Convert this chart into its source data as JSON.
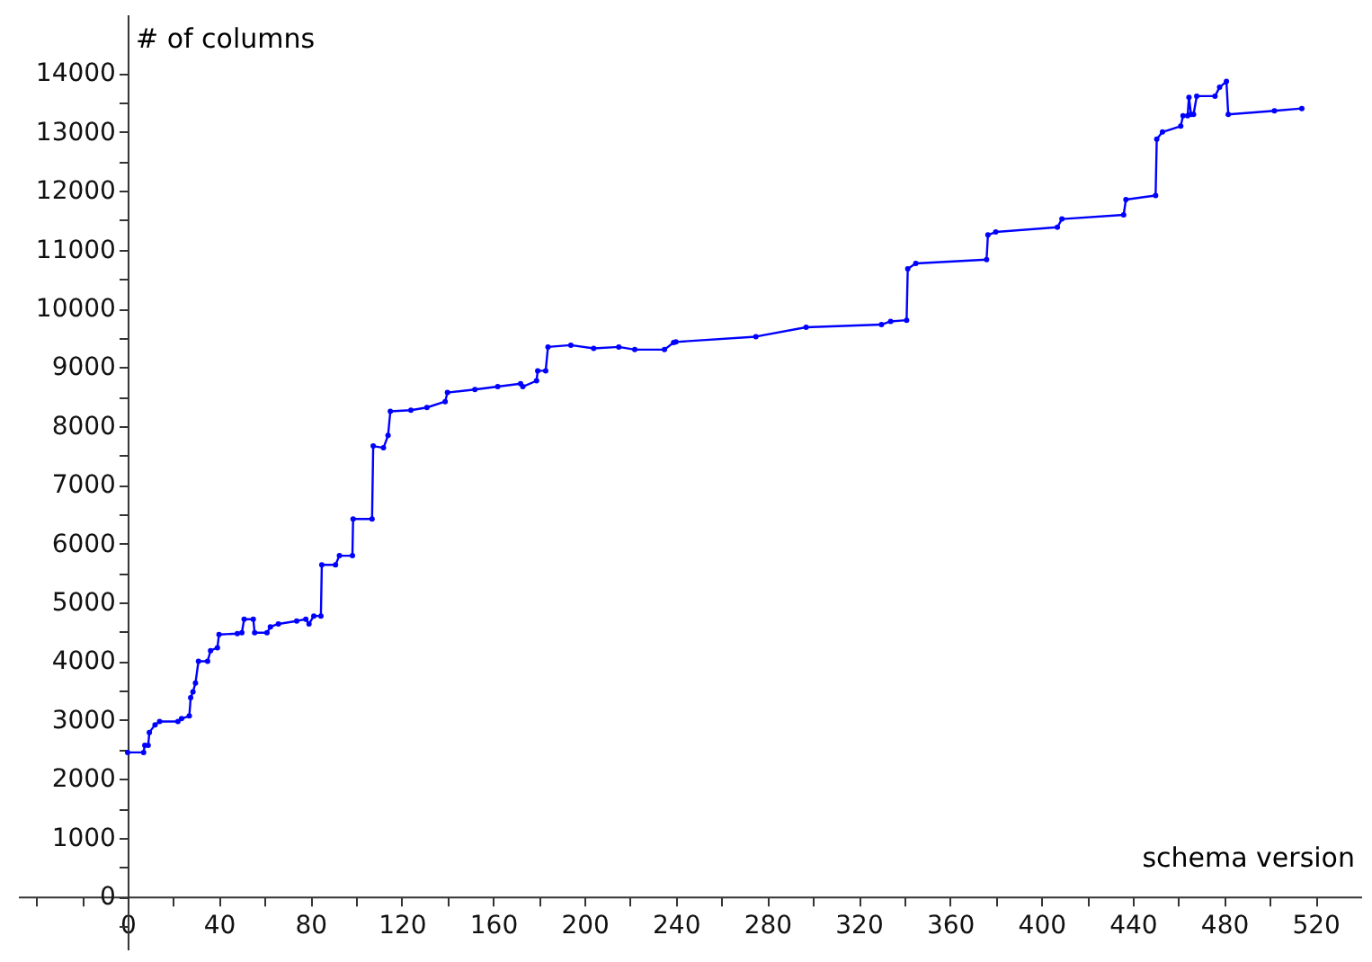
{
  "chart_data": {
    "type": "line",
    "xlabel": "schema version",
    "ylabel": "# of columns",
    "x": [
      0,
      7,
      7.5,
      9,
      9.5,
      12,
      14,
      22,
      23.6,
      27,
      27.6,
      28.6,
      29.7,
      31,
      35,
      36.3,
      39.3,
      40,
      48,
      50,
      51,
      55,
      55.6,
      61,
      62.5,
      66,
      74,
      78,
      79.4,
      81.5,
      84.6,
      85,
      91,
      92.7,
      98.4,
      98.7,
      107,
      107.5,
      112,
      114,
      115,
      124,
      131,
      139,
      140,
      152,
      162,
      172,
      173,
      179,
      179.5,
      183,
      184,
      194,
      204,
      215,
      222,
      235,
      239,
      240,
      275,
      297,
      330,
      334,
      341,
      341.5,
      345,
      376,
      376.6,
      380,
      407,
      409,
      436,
      437,
      450,
      450.5,
      453,
      461,
      462,
      464,
      464.6,
      465.5,
      466.6,
      468,
      476,
      478,
      481,
      481.8,
      502,
      514
    ],
    "series": [
      {
        "color": "#0000ff",
        "values": [
          2450,
          2450,
          2570,
          2570,
          2790,
          2920,
          2975,
          2975,
          3025,
          3070,
          3380,
          3480,
          3630,
          4000,
          4000,
          4180,
          4230,
          4455,
          4470,
          4485,
          4715,
          4715,
          4485,
          4485,
          4585,
          4635,
          4685,
          4715,
          4635,
          4770,
          4770,
          5640,
          5640,
          5795,
          5795,
          6420,
          6420,
          7660,
          7630,
          7840,
          8250,
          8270,
          8315,
          8415,
          8570,
          8620,
          8670,
          8720,
          8670,
          8770,
          8940,
          8940,
          9345,
          9375,
          9320,
          9345,
          9300,
          9300,
          9420,
          9430,
          9520,
          9680,
          9725,
          9780,
          9800,
          10675,
          10765,
          10830,
          11250,
          11300,
          11380,
          11520,
          11590,
          11850,
          11920,
          12880,
          13000,
          13100,
          13275,
          13275,
          13590,
          13300,
          13300,
          13610,
          13610,
          13760,
          13860,
          13300,
          13360,
          13400
        ]
      }
    ],
    "xlim": [
      -48,
      540
    ],
    "xticks": [
      {
        "value": -40,
        "label": null
      },
      {
        "value": -20,
        "label": null
      },
      0,
      {
        "value": 20,
        "label": null
      },
      40,
      {
        "value": 60,
        "label": null
      },
      80,
      {
        "value": 100,
        "label": null
      },
      120,
      {
        "value": 140,
        "label": null
      },
      160,
      {
        "value": 180,
        "label": null
      },
      200,
      {
        "value": 220,
        "label": null
      },
      240,
      {
        "value": 260,
        "label": null
      },
      280,
      {
        "value": 300,
        "label": null
      },
      320,
      {
        "value": 340,
        "label": null
      },
      360,
      {
        "value": 380,
        "label": null
      },
      400,
      {
        "value": 420,
        "label": null
      },
      440,
      {
        "value": 460,
        "label": null
      },
      480,
      {
        "value": 500,
        "label": null
      },
      520
    ],
    "ylim": [
      -900,
      15000
    ],
    "yticks": [
      {
        "value": -500,
        "label": null
      },
      0,
      {
        "value": 500,
        "label": null
      },
      1000,
      {
        "value": 1500,
        "label": null
      },
      2000,
      {
        "value": 2500,
        "label": null
      },
      3000,
      {
        "value": 3500,
        "label": null
      },
      4000,
      {
        "value": 4500,
        "label": null
      },
      5000,
      {
        "value": 5500,
        "label": null
      },
      6000,
      {
        "value": 6500,
        "label": null
      },
      7000,
      {
        "value": 7500,
        "label": null
      },
      8000,
      {
        "value": 8500,
        "label": null
      },
      9000,
      {
        "value": 9500,
        "label": null
      },
      10000,
      {
        "value": 10500,
        "label": null
      },
      11000,
      {
        "value": 11500,
        "label": null
      },
      12000,
      {
        "value": 12500,
        "label": null
      },
      13000,
      {
        "value": 13500,
        "label": null
      },
      14000
    ],
    "grid": false,
    "marker": "circle",
    "line_style": "solid"
  }
}
